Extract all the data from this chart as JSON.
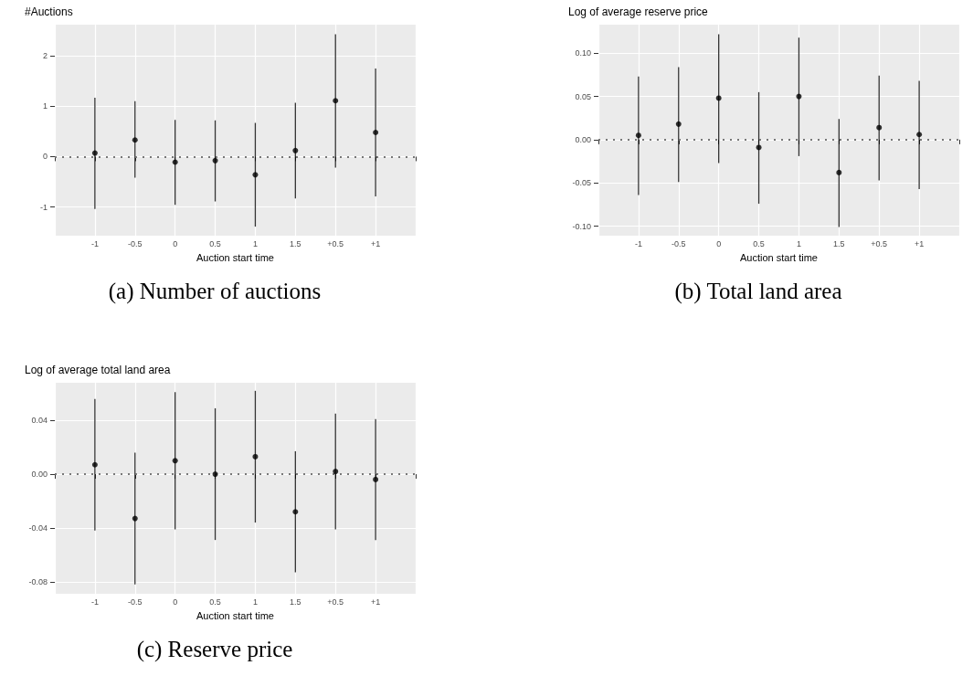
{
  "chart_data": [
    {
      "type": "scatter",
      "title": "#Auctions",
      "xlabel": "Auction start time",
      "categories": [
        "-1",
        "-0.5",
        "0",
        "0.5",
        "1",
        "1.5",
        "+0.5",
        "+1"
      ],
      "values": [
        0.07,
        0.33,
        -0.11,
        -0.08,
        -0.36,
        0.12,
        1.11,
        0.48
      ],
      "errors": [
        [
          -1.04,
          1.17
        ],
        [
          -0.42,
          1.1
        ],
        [
          -0.96,
          0.73
        ],
        [
          -0.89,
          0.72
        ],
        [
          -1.39,
          0.67
        ],
        [
          -0.83,
          1.07
        ],
        [
          -0.22,
          2.43
        ],
        [
          -0.79,
          1.75
        ]
      ],
      "color": "#000000",
      "marker": "circle",
      "ylim": [
        -1.57,
        2.62
      ],
      "yticks": [
        -1,
        0,
        1,
        2
      ],
      "grid": true,
      "ref_lines": [
        {
          "axis": "y",
          "value": 0,
          "line_style": "dotted",
          "color": "#777777"
        }
      ],
      "annotations": [
        "(a) Number of auctions"
      ]
    },
    {
      "type": "scatter",
      "title": "Log of average reserve price",
      "xlabel": "Auction start time",
      "categories": [
        "-1",
        "-0.5",
        "0",
        "0.5",
        "1",
        "1.5",
        "+0.5",
        "+1"
      ],
      "values": [
        0.005,
        0.018,
        0.048,
        -0.009,
        0.05,
        -0.038,
        0.014,
        0.006
      ],
      "errors": [
        [
          -0.064,
          0.073
        ],
        [
          -0.049,
          0.084
        ],
        [
          -0.027,
          0.122
        ],
        [
          -0.074,
          0.055
        ],
        [
          -0.019,
          0.118
        ],
        [
          -0.101,
          0.024
        ],
        [
          -0.047,
          0.074
        ],
        [
          -0.057,
          0.068
        ]
      ],
      "color": "#000000",
      "marker": "circle",
      "ylim": [
        -0.111,
        0.133
      ],
      "yticks": [
        {
          "value": -0.1,
          "label": "-0.10"
        },
        {
          "value": -0.05,
          "label": "-0.05"
        },
        {
          "value": 0,
          "label": "0.00"
        },
        {
          "value": 0.05,
          "label": "0.05"
        },
        {
          "value": 0.1,
          "label": "0.10"
        }
      ],
      "grid": true,
      "ref_lines": [
        {
          "axis": "y",
          "value": 0,
          "line_style": "dotted",
          "color": "#777777"
        }
      ],
      "annotations": [
        "(b) Total land area"
      ]
    },
    {
      "type": "scatter",
      "title": "Log of average total land area",
      "xlabel": "Auction start time",
      "categories": [
        "-1",
        "-0.5",
        "0",
        "0.5",
        "1",
        "1.5",
        "+0.5",
        "+1"
      ],
      "values": [
        0.007,
        -0.033,
        0.01,
        0,
        0.013,
        -0.028,
        0.002,
        -0.004
      ],
      "errors": [
        [
          -0.042,
          0.056
        ],
        [
          -0.082,
          0.016
        ],
        [
          -0.041,
          0.061
        ],
        [
          -0.049,
          0.049
        ],
        [
          -0.036,
          0.062
        ],
        [
          -0.073,
          0.017
        ],
        [
          -0.041,
          0.045
        ],
        [
          -0.049,
          0.041
        ]
      ],
      "color": "#000000",
      "marker": "circle",
      "ylim": [
        -0.089,
        0.068
      ],
      "yticks": [
        {
          "value": -0.08,
          "label": "-0.08"
        },
        {
          "value": -0.04,
          "label": "-0.04"
        },
        {
          "value": 0,
          "label": "0.00"
        },
        {
          "value": 0.04,
          "label": "0.04"
        }
      ],
      "grid": true,
      "ref_lines": [
        {
          "axis": "y",
          "value": 0,
          "line_style": "dotted",
          "color": "#777777"
        }
      ],
      "annotations": [
        "(c) Reserve price"
      ]
    }
  ]
}
